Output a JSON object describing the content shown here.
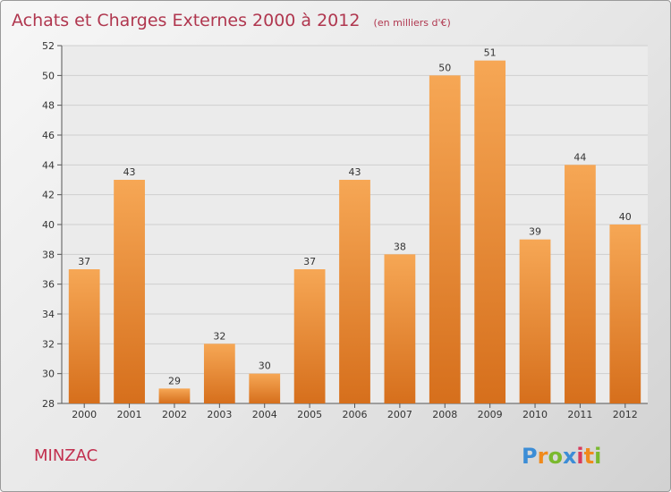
{
  "chart_data": {
    "type": "bar",
    "title": "Achats et Charges Externes 2000 à 2012",
    "subtitle": "(en milliers d'€)",
    "categories": [
      "2000",
      "2001",
      "2002",
      "2003",
      "2004",
      "2005",
      "2006",
      "2007",
      "2008",
      "2009",
      "2010",
      "2011",
      "2012"
    ],
    "values": [
      37,
      43,
      29,
      32,
      30,
      37,
      43,
      38,
      50,
      51,
      39,
      44,
      40
    ],
    "ylim": [
      28,
      52
    ],
    "yticks": [
      28,
      30,
      32,
      34,
      36,
      38,
      40,
      42,
      44,
      46,
      48,
      50,
      52
    ],
    "grid": true,
    "bar_color_top": "#f6a755",
    "bar_color_bottom": "#d66f1c"
  },
  "commune": "MINZAC",
  "logo": {
    "text": "Proxiti",
    "letters": [
      {
        "ch": "P",
        "color": "#3c8dd6"
      },
      {
        "ch": "r",
        "color": "#f08a1c"
      },
      {
        "ch": "o",
        "color": "#7ab92e"
      },
      {
        "ch": "x",
        "color": "#3c8dd6"
      },
      {
        "ch": "i",
        "color": "#d83a5c"
      },
      {
        "ch": "t",
        "color": "#f08a1c"
      },
      {
        "ch": "i",
        "color": "#7ab92e"
      }
    ]
  }
}
